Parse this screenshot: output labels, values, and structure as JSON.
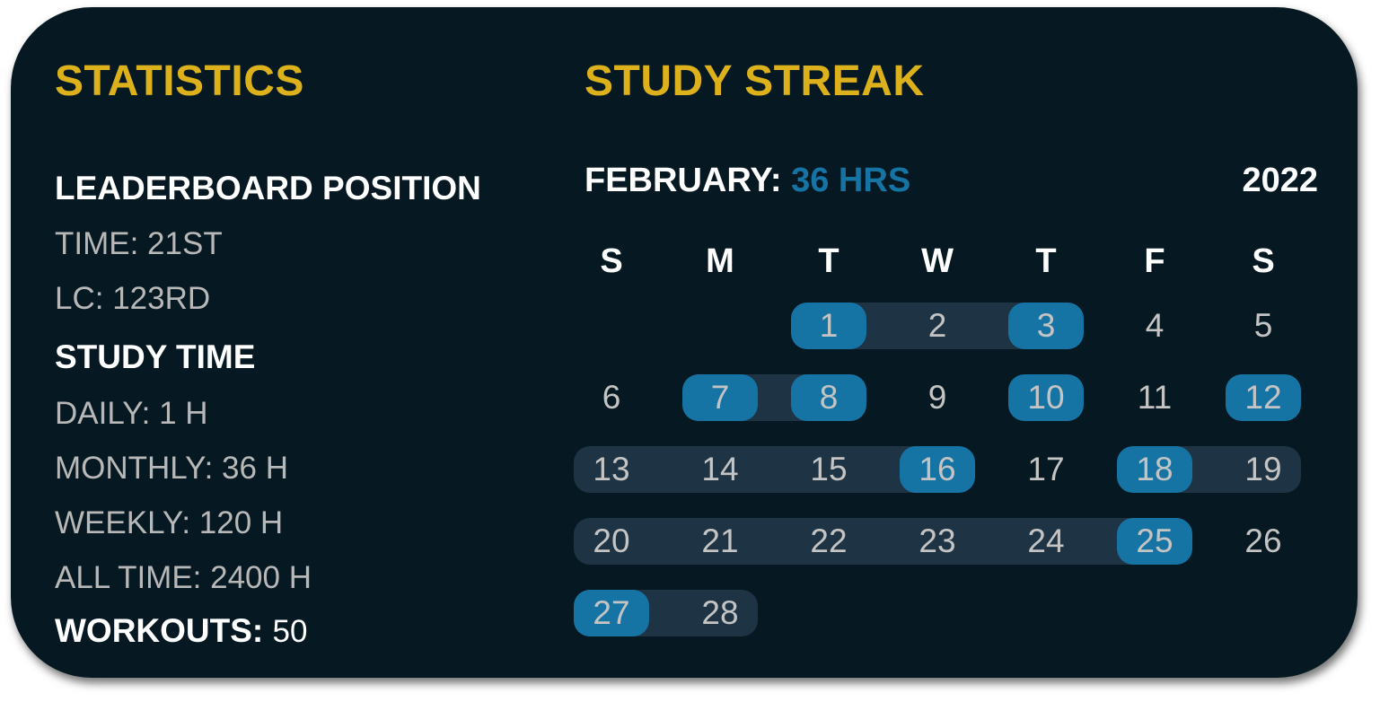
{
  "statistics": {
    "title": "STATISTICS",
    "leaderboard_heading": "LEADERBOARD POSITION",
    "time_position": "TIME: 21ST",
    "lc_position": "LC: 123RD",
    "study_time_heading": "STUDY TIME",
    "daily": "DAILY: 1 H",
    "monthly": "MONTHLY: 36 H",
    "weekly": "WEEKLY: 120 H",
    "all_time": "ALL TIME: 2400 H",
    "workouts_label": "WORKOUTS:",
    "workouts_value": "50"
  },
  "streak": {
    "title": "STUDY STREAK",
    "month_label": "FEBRUARY:",
    "month_hours": "36 HRS",
    "year": "2022",
    "weekdays": [
      "S",
      "M",
      "T",
      "W",
      "T",
      "F",
      "S"
    ],
    "first_weekday_index": 2,
    "days_in_month": 28,
    "streak_ranges": [
      [
        1,
        3
      ],
      [
        7,
        8
      ],
      [
        13,
        16
      ],
      [
        18,
        19
      ],
      [
        20,
        25
      ],
      [
        27,
        28
      ]
    ],
    "highlighted_days": [
      1,
      3,
      7,
      8,
      10,
      12,
      16,
      18,
      25,
      27
    ],
    "colors": {
      "title": "#dcb11c",
      "highlight": "#1674a5",
      "streak": "#1e3344",
      "background": "#061922"
    }
  }
}
